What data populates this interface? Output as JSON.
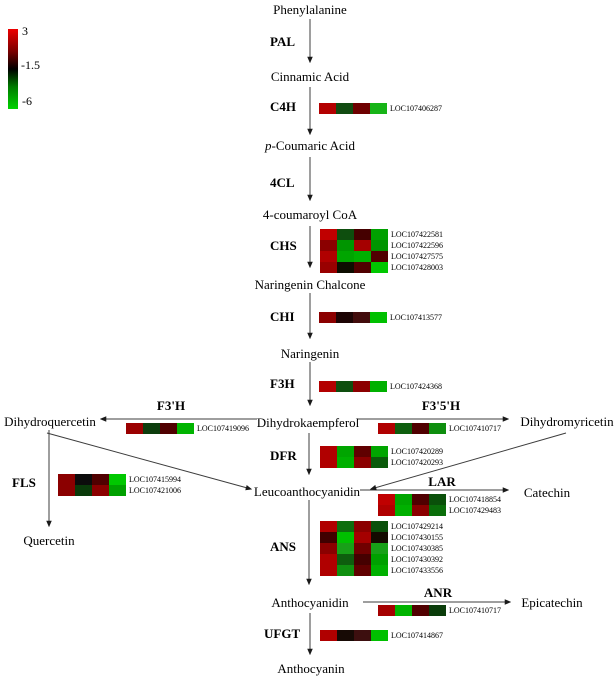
{
  "scale": {
    "max": "3",
    "mid": "-1.5",
    "min": "-6",
    "colors": {
      "high": "#ee0000",
      "mid": "#000000",
      "low": "#00d400"
    }
  },
  "metabolites": {
    "phenylalanine": "Phenylalanine",
    "cinnamic_acid": "Cinnamic Acid",
    "p_coumaric_italic": "p",
    "p_coumaric_rest": "-Coumaric Acid",
    "coumaroyl_coa": "4-coumaroyl CoA",
    "naringenin_chalcone": "Naringenin Chalcone",
    "naringenin": "Naringenin",
    "dihydrokaempferol": "Dihydrokaempferol",
    "dihydroquercetin": "Dihydroquercetin",
    "dihydromyricetin": "Dihydromyricetin",
    "leucoanthocyanidin": "Leucoanthocyanidin",
    "quercetin": "Quercetin",
    "catechin": "Catechin",
    "epicatechin": "Epicatechin",
    "anthocyanidin": "Anthocyanidin",
    "anthocyanin": "Anthocyanin"
  },
  "enzymes": {
    "pal": "PAL",
    "c4h": "C4H",
    "fourcl": "4CL",
    "chs": "CHS",
    "chi": "CHI",
    "f3h": "F3H",
    "f3ph": "F3'H",
    "f35h": "F3'5'H",
    "dfr": "DFR",
    "fls": "FLS",
    "lar": "LAR",
    "ans": "ANS",
    "anr": "ANR",
    "ufgt": "UFGT"
  },
  "heatmaps": {
    "c4h": {
      "rows": [
        {
          "gene": "LOC107406287",
          "colors": [
            "#b30000",
            "#114b11",
            "#6e0000",
            "#17b417"
          ]
        }
      ]
    },
    "chs": {
      "rows": [
        {
          "gene": "LOC107422581",
          "colors": [
            "#c00000",
            "#0e4e0e",
            "#450000",
            "#00a000"
          ]
        },
        {
          "gene": "LOC107422596",
          "colors": [
            "#8b0000",
            "#009500",
            "#a50000",
            "#009500"
          ]
        },
        {
          "gene": "LOC107427575",
          "colors": [
            "#b00000",
            "#00a500",
            "#00b000",
            "#500000"
          ]
        },
        {
          "gene": "LOC107428003",
          "colors": [
            "#990000",
            "#0d0d00",
            "#500000",
            "#00c800"
          ]
        }
      ]
    },
    "chi": {
      "rows": [
        {
          "gene": "LOC107413577",
          "colors": [
            "#8b0000",
            "#1c0404",
            "#420c0c",
            "#00c000"
          ]
        }
      ]
    },
    "f3h": {
      "rows": [
        {
          "gene": "LOC107424368",
          "colors": [
            "#b30000",
            "#0e4e0e",
            "#8b0000",
            "#00b000"
          ]
        }
      ]
    },
    "f3ph": {
      "rows": [
        {
          "gene": "LOC107419096",
          "colors": [
            "#9b0000",
            "#0d3d0d",
            "#500000",
            "#00b400"
          ]
        }
      ]
    },
    "f35h": {
      "rows": [
        {
          "gene": "LOC107410717",
          "colors": [
            "#b00000",
            "#0e5e0e",
            "#500000",
            "#0e8e0e"
          ]
        }
      ]
    },
    "dfr": {
      "rows": [
        {
          "gene": "LOC107420289",
          "colors": [
            "#b00000",
            "#00a500",
            "#600000",
            "#00a500"
          ]
        },
        {
          "gene": "LOC107420293",
          "colors": [
            "#b00000",
            "#00b000",
            "#8b0000",
            "#0a5a0a"
          ]
        }
      ]
    },
    "fls": {
      "rows": [
        {
          "gene": "LOC107415994",
          "colors": [
            "#8b0000",
            "#0c0c0c",
            "#500000",
            "#00c800"
          ]
        },
        {
          "gene": "LOC107421006",
          "colors": [
            "#8b0000",
            "#0a3a0a",
            "#8b0000",
            "#00a000"
          ]
        }
      ]
    },
    "lar": {
      "rows": [
        {
          "gene": "LOC107418854",
          "colors": [
            "#c00000",
            "#00a500",
            "#500000",
            "#0a500a"
          ]
        },
        {
          "gene": "LOC107429483",
          "colors": [
            "#b00000",
            "#00b000",
            "#8b0000",
            "#0a6e0a"
          ]
        }
      ]
    },
    "ans": {
      "rows": [
        {
          "gene": "LOC107429214",
          "colors": [
            "#b00000",
            "#0e6e0e",
            "#8b0000",
            "#0a500a"
          ]
        },
        {
          "gene": "LOC107430155",
          "colors": [
            "#400000",
            "#00c000",
            "#a50000",
            "#140a00"
          ]
        },
        {
          "gene": "LOC107430385",
          "colors": [
            "#8b0000",
            "#18a018",
            "#700000",
            "#18a018"
          ]
        },
        {
          "gene": "LOC107430392",
          "colors": [
            "#b00000",
            "#0e5e0e",
            "#450000",
            "#00a000"
          ]
        },
        {
          "gene": "LOC107433556",
          "colors": [
            "#b00000",
            "#109010",
            "#600000",
            "#00b000"
          ]
        }
      ]
    },
    "anr": {
      "rows": [
        {
          "gene": "LOC107410717",
          "colors": [
            "#a50000",
            "#00b400",
            "#500000",
            "#0a3c0a"
          ]
        }
      ]
    },
    "ufgt": {
      "rows": [
        {
          "gene": "LOC107414867",
          "colors": [
            "#b00000",
            "#170a05",
            "#3d0f0f",
            "#00c000"
          ]
        }
      ]
    }
  }
}
